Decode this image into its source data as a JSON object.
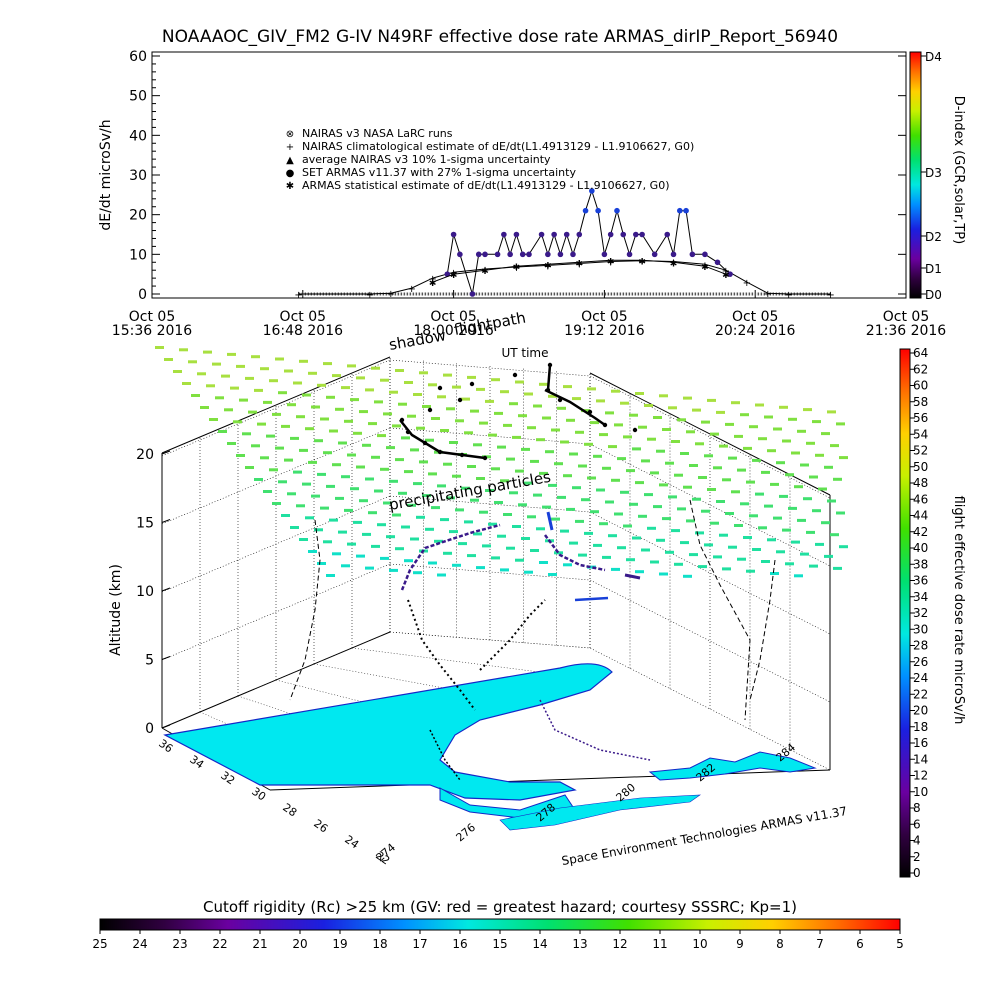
{
  "title": "NOAAAOC_GIV_FM2 G-IV    N49RF   effective dose rate ARMAS_dirIP_Report_56940",
  "colors": {
    "nairas": "#222222",
    "armas": "#3a1a8a",
    "armas_high": "#1840d8",
    "terrain": "#00e8f0",
    "water_edge": "#1428c8"
  },
  "top_chart": {
    "ylabel": "dE/dt microSv/h",
    "xlabel": "UT time",
    "y_ticks": [
      "0",
      "10",
      "20",
      "30",
      "40",
      "50",
      "60"
    ],
    "x_ticks": [
      {
        "line1": "Oct 05",
        "line2": "15:36 2016"
      },
      {
        "line1": "Oct 05",
        "line2": "16:48 2016"
      },
      {
        "line1": "Oct 05",
        "line2": "18:00 2016"
      },
      {
        "line1": "Oct 05",
        "line2": "19:12 2016"
      },
      {
        "line1": "Oct 05",
        "line2": "20:24 2016"
      },
      {
        "line1": "Oct 05",
        "line2": "21:36 2016"
      }
    ],
    "legend": [
      {
        "symbol": "⊗",
        "text": "NAIRAS v3 NASA LaRC runs"
      },
      {
        "symbol": "+",
        "text": "NAIRAS climatological estimate of dE/dt(L1.4913129 - L1.9106627, G0)"
      },
      {
        "symbol": "▲",
        "text": "average NAIRAS v3 10% 1-sigma uncertainty"
      },
      {
        "symbol": "●",
        "text": "SET ARMAS v11.37 with 27% 1-sigma uncertainty"
      },
      {
        "symbol": "✱",
        "text": "ARMAS statistical estimate of dE/dt(L1.4913129 - L1.9106627, G0)"
      }
    ],
    "dindex_label": "D-index (GCR,solar,TP)",
    "dindex_ticks": [
      "D4",
      "D3",
      "D2",
      "D1",
      "D0"
    ]
  },
  "chart_data": {
    "type": "line",
    "x_unit": "UT time (Oct 05 2016)",
    "ylim": [
      0,
      60
    ],
    "series": [
      {
        "name": "NAIRAS climatological estimate of dE/dt(L1.4913129 - L1.9106627, G0)",
        "points": [
          [
            "16:46",
            0
          ],
          [
            "17:20",
            0
          ],
          [
            "17:30",
            0.2
          ],
          [
            "17:40",
            1.5
          ],
          [
            "17:50",
            4.0
          ],
          [
            "18:00",
            5.5
          ],
          [
            "18:15",
            6.3
          ],
          [
            "18:30",
            6.8
          ],
          [
            "18:45",
            7.2
          ],
          [
            "19:00",
            7.7
          ],
          [
            "19:15",
            8.2
          ],
          [
            "19:30",
            8.4
          ],
          [
            "19:45",
            8.2
          ],
          [
            "20:00",
            7.5
          ],
          [
            "20:10",
            6.0
          ],
          [
            "20:20",
            3.0
          ],
          [
            "20:30",
            0.2
          ],
          [
            "20:40",
            0
          ],
          [
            "21:00",
            0
          ]
        ]
      },
      {
        "name": "SET ARMAS v11.37 with 27% 1-sigma uncertainty",
        "points": [
          [
            "17:57",
            5
          ],
          [
            "18:00",
            15
          ],
          [
            "18:03",
            10
          ],
          [
            "18:09",
            0
          ],
          [
            "18:12",
            10
          ],
          [
            "18:15",
            10
          ],
          [
            "18:21",
            10
          ],
          [
            "18:24",
            15
          ],
          [
            "18:27",
            10
          ],
          [
            "18:30",
            15
          ],
          [
            "18:33",
            10
          ],
          [
            "18:36",
            10
          ],
          [
            "18:42",
            15
          ],
          [
            "18:45",
            10
          ],
          [
            "18:48",
            15
          ],
          [
            "18:51",
            10
          ],
          [
            "18:54",
            15
          ],
          [
            "18:57",
            10
          ],
          [
            "19:00",
            15
          ],
          [
            "19:03",
            21
          ],
          [
            "19:06",
            26
          ],
          [
            "19:09",
            21
          ],
          [
            "19:12",
            10
          ],
          [
            "19:15",
            15
          ],
          [
            "19:18",
            21
          ],
          [
            "19:21",
            15
          ],
          [
            "19:24",
            10
          ],
          [
            "19:27",
            15
          ],
          [
            "19:30",
            15
          ],
          [
            "19:36",
            10
          ],
          [
            "19:42",
            15
          ],
          [
            "19:45",
            10
          ],
          [
            "19:48",
            21
          ],
          [
            "19:51",
            21
          ],
          [
            "19:54",
            10
          ],
          [
            "20:00",
            10
          ],
          [
            "20:06",
            8
          ],
          [
            "20:12",
            5
          ]
        ]
      },
      {
        "name": "ARMAS statistical estimate of dE/dt(L1.4913129 - L1.9106627, G0)",
        "points": [
          [
            "17:50",
            3
          ],
          [
            "18:00",
            5
          ],
          [
            "18:15",
            6
          ],
          [
            "18:30",
            7
          ],
          [
            "18:45",
            7.5
          ],
          [
            "19:00",
            8
          ],
          [
            "19:15",
            8.5
          ],
          [
            "19:30",
            8.5
          ],
          [
            "19:45",
            8
          ],
          [
            "20:00",
            7
          ],
          [
            "20:10",
            5
          ]
        ]
      }
    ]
  },
  "plot3d": {
    "annotations": {
      "shadow": "shadow",
      "flightpath": "flightpath",
      "precipitating": "precipitating particles"
    },
    "zlabel": "Altitude (km)",
    "z_ticks": [
      "0",
      "5",
      "10",
      "15",
      "20"
    ],
    "lat_ticks": [
      "36",
      "34",
      "32",
      "30",
      "28",
      "26",
      "24",
      "22"
    ],
    "lon_ticks": [
      "274",
      "276",
      "278",
      "280",
      "282",
      "284"
    ],
    "credit": "Space Environment Technologies ARMAS v11.37"
  },
  "right_colorbar": {
    "label": "flight effective dose rate microSv/h",
    "ticks": [
      "64",
      "62",
      "60",
      "58",
      "56",
      "54",
      "52",
      "50",
      "48",
      "46",
      "44",
      "42",
      "40",
      "38",
      "36",
      "34",
      "32",
      "30",
      "28",
      "26",
      "24",
      "22",
      "20",
      "18",
      "16",
      "14",
      "12",
      "10",
      "8",
      "6",
      "4",
      "2",
      "0"
    ]
  },
  "bottom_colorbar": {
    "label": "Cutoff rigidity (Rc) >25 km (GV: red = greatest hazard; courtesy SSSRC; Kp=1)",
    "ticks": [
      "25",
      "24",
      "23",
      "22",
      "21",
      "20",
      "19",
      "18",
      "17",
      "16",
      "15",
      "14",
      "13",
      "12",
      "11",
      "10",
      "9",
      "8",
      "7",
      "6",
      "5"
    ]
  }
}
